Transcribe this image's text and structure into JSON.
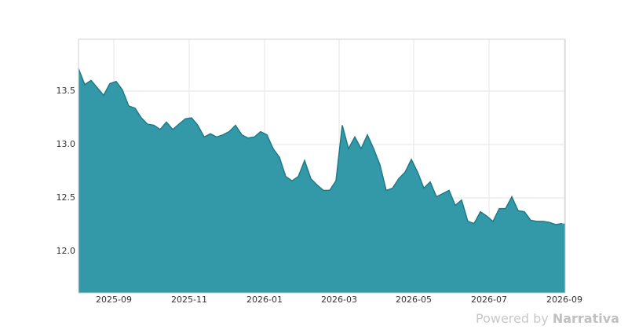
{
  "chart_data": {
    "type": "area",
    "color": "#3399a8",
    "line_color": "#1f7a87",
    "grid": true,
    "values": [
      13.71,
      13.56,
      13.6,
      13.53,
      13.46,
      13.57,
      13.59,
      13.51,
      13.36,
      13.34,
      13.25,
      13.19,
      13.18,
      13.14,
      13.21,
      13.14,
      13.19,
      13.24,
      13.25,
      13.18,
      13.07,
      13.1,
      13.07,
      13.09,
      13.12,
      13.18,
      13.09,
      13.06,
      13.07,
      13.12,
      13.09,
      12.96,
      12.88,
      12.7,
      12.66,
      12.7,
      12.85,
      12.68,
      12.62,
      12.57,
      12.57,
      12.66,
      13.18,
      12.96,
      13.07,
      12.96,
      13.09,
      12.96,
      12.81,
      12.57,
      12.59,
      12.68,
      12.74,
      12.86,
      12.74,
      12.59,
      12.65,
      12.51,
      12.54,
      12.57,
      12.43,
      12.48,
      12.28,
      12.26,
      12.37,
      12.33,
      12.28,
      12.4,
      12.4,
      12.51,
      12.38,
      12.37,
      12.29,
      12.28,
      12.28,
      12.27,
      12.25,
      12.26
    ],
    "xlim": [
      0,
      77.5
    ],
    "xticks": [
      {
        "value": 5.625,
        "label": "2025-09"
      },
      {
        "value": 17.625,
        "label": "2025-11"
      },
      {
        "value": 29.625,
        "label": "2026-01"
      },
      {
        "value": 41.5,
        "label": "2026-03"
      },
      {
        "value": 53.375,
        "label": "2026-05"
      },
      {
        "value": 65.375,
        "label": "2026-07"
      },
      {
        "value": 77.375,
        "label": "2026-09"
      }
    ],
    "ylim": [
      11.61,
      13.985
    ],
    "yticks": [
      {
        "value": 12,
        "label": "12.0"
      },
      12.5,
      {
        "value": 13,
        "label": "13.0"
      },
      13.5
    ]
  },
  "footer": {
    "prefix": "Powered by",
    "brand": "Narrativa"
  }
}
